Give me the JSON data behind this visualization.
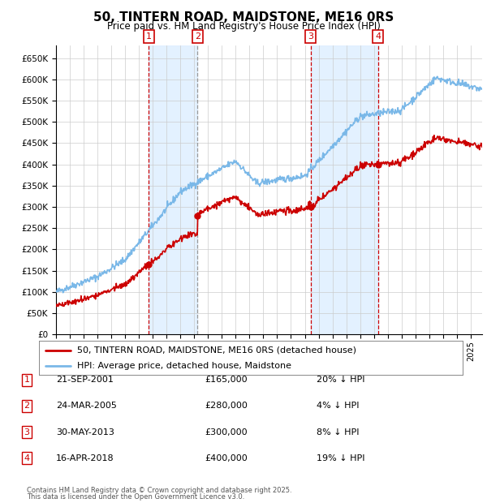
{
  "title": "50, TINTERN ROAD, MAIDSTONE, ME16 0RS",
  "subtitle": "Price paid vs. HM Land Registry's House Price Index (HPI)",
  "ylim": [
    0,
    680000
  ],
  "yticks": [
    0,
    50000,
    100000,
    150000,
    200000,
    250000,
    300000,
    350000,
    400000,
    450000,
    500000,
    550000,
    600000,
    650000
  ],
  "xlim_start": 1995.0,
  "xlim_end": 2025.83,
  "legend_line1": "50, TINTERN ROAD, MAIDSTONE, ME16 0RS (detached house)",
  "legend_line2": "HPI: Average price, detached house, Maidstone",
  "sale_color": "#cc0000",
  "hpi_color": "#7ab8e8",
  "vline_color_red": "#cc0000",
  "vline_color_grey": "#999999",
  "shade_color": "#ddeeff",
  "transactions": [
    {
      "num": 1,
      "date_dec": 2001.72,
      "price": 165000,
      "date_str": "21-SEP-2001",
      "pct": "20%",
      "dir": "↓",
      "vline": "red"
    },
    {
      "num": 2,
      "date_dec": 2005.23,
      "price": 280000,
      "date_str": "24-MAR-2005",
      "pct": "4%",
      "dir": "↓",
      "vline": "grey"
    },
    {
      "num": 3,
      "date_dec": 2013.41,
      "price": 300000,
      "date_str": "30-MAY-2013",
      "pct": "8%",
      "dir": "↓",
      "vline": "red"
    },
    {
      "num": 4,
      "date_dec": 2018.29,
      "price": 400000,
      "date_str": "16-APR-2018",
      "pct": "19%",
      "dir": "↓",
      "vline": "red"
    }
  ],
  "footer1": "Contains HM Land Registry data © Crown copyright and database right 2025.",
  "footer2": "This data is licensed under the Open Government Licence v3.0."
}
